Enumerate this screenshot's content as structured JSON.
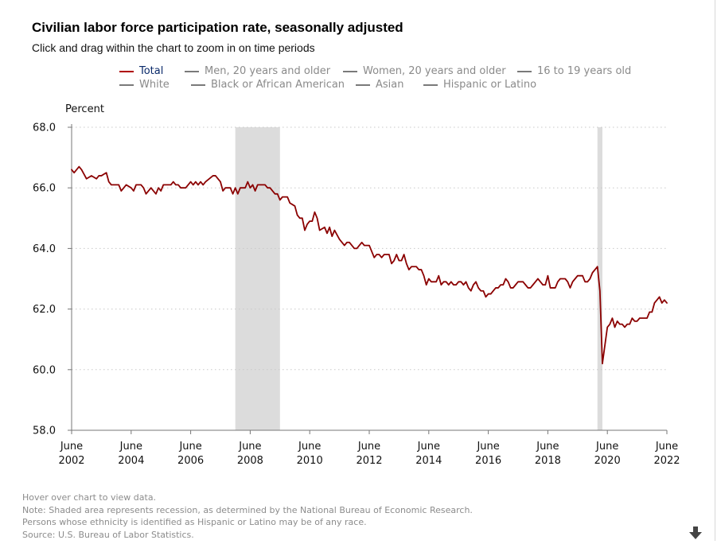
{
  "title": "Civilian labor force participation rate, seasonally adjusted",
  "subtitle": "Click and drag within the chart to zoom in on time periods",
  "legend": {
    "items": [
      {
        "label": "Total",
        "active": true
      },
      {
        "label": "Men, 20 years and older",
        "active": false
      },
      {
        "label": "Women, 20 years and older",
        "active": false
      },
      {
        "label": "16 to 19 years old",
        "active": false
      },
      {
        "label": "White",
        "active": false
      },
      {
        "label": "Black or African American",
        "active": false
      },
      {
        "label": "Asian",
        "active": false
      },
      {
        "label": "Hispanic or Latino",
        "active": false
      }
    ]
  },
  "footer": {
    "lines": [
      "Hover over chart to view data.",
      "Note: Shaded area represents recession, as determined by the National Bureau of Economic Research.",
      "Persons whose ethnicity is identified as Hispanic or Latino may be of any race.",
      "Source: U.S. Bureau of Labor Statistics."
    ]
  },
  "colors": {
    "series": "#8b0000",
    "recession": "#dcdcdc",
    "grid": "#c8c8c8",
    "axis": "#777777"
  },
  "icons": {
    "download": "down-arrow-icon"
  },
  "chart_data": {
    "type": "line",
    "ylabel": "Percent",
    "ylim": [
      58.0,
      68.0
    ],
    "yticks": [
      "58.0",
      "60.0",
      "62.0",
      "64.0",
      "66.0",
      "68.0"
    ],
    "xlim": [
      "2002-06",
      "2022-06"
    ],
    "xticks": [
      {
        "month": "June",
        "year": "2002"
      },
      {
        "month": "June",
        "year": "2004"
      },
      {
        "month": "June",
        "year": "2006"
      },
      {
        "month": "June",
        "year": "2008"
      },
      {
        "month": "June",
        "year": "2010"
      },
      {
        "month": "June",
        "year": "2012"
      },
      {
        "month": "June",
        "year": "2014"
      },
      {
        "month": "June",
        "year": "2016"
      },
      {
        "month": "June",
        "year": "2018"
      },
      {
        "month": "June",
        "year": "2020"
      },
      {
        "month": "June",
        "year": "2022"
      }
    ],
    "grid": true,
    "recessions": [
      {
        "start": "2007-12",
        "end": "2009-06"
      },
      {
        "start": "2020-02",
        "end": "2020-04"
      }
    ],
    "series": [
      {
        "name": "Total",
        "points": [
          [
            "2002-06",
            66.6
          ],
          [
            "2002-07",
            66.5
          ],
          [
            "2002-09",
            66.7
          ],
          [
            "2002-10",
            66.6
          ],
          [
            "2002-12",
            66.3
          ],
          [
            "2003-02",
            66.4
          ],
          [
            "2003-04",
            66.3
          ],
          [
            "2003-05",
            66.4
          ],
          [
            "2003-06",
            66.4
          ],
          [
            "2003-08",
            66.5
          ],
          [
            "2003-09",
            66.2
          ],
          [
            "2003-10",
            66.1
          ],
          [
            "2003-12",
            66.1
          ],
          [
            "2004-01",
            66.1
          ],
          [
            "2004-02",
            65.9
          ],
          [
            "2004-04",
            66.1
          ],
          [
            "2004-06",
            66.0
          ],
          [
            "2004-07",
            65.9
          ],
          [
            "2004-08",
            66.1
          ],
          [
            "2004-10",
            66.1
          ],
          [
            "2004-11",
            66.0
          ],
          [
            "2004-12",
            65.8
          ],
          [
            "2005-02",
            66.0
          ],
          [
            "2005-03",
            65.9
          ],
          [
            "2005-04",
            65.8
          ],
          [
            "2005-05",
            66.0
          ],
          [
            "2005-06",
            65.9
          ],
          [
            "2005-07",
            66.1
          ],
          [
            "2005-10",
            66.1
          ],
          [
            "2005-11",
            66.2
          ],
          [
            "2005-12",
            66.1
          ],
          [
            "2006-01",
            66.1
          ],
          [
            "2006-02",
            66.0
          ],
          [
            "2006-04",
            66.0
          ],
          [
            "2006-06",
            66.2
          ],
          [
            "2006-07",
            66.1
          ],
          [
            "2006-08",
            66.2
          ],
          [
            "2006-09",
            66.1
          ],
          [
            "2006-10",
            66.2
          ],
          [
            "2006-11",
            66.1
          ],
          [
            "2006-12",
            66.2
          ],
          [
            "2007-03",
            66.4
          ],
          [
            "2007-04",
            66.4
          ],
          [
            "2007-06",
            66.2
          ],
          [
            "2007-07",
            65.9
          ],
          [
            "2007-08",
            66.0
          ],
          [
            "2007-10",
            66.0
          ],
          [
            "2007-11",
            65.8
          ],
          [
            "2007-12",
            66.0
          ],
          [
            "2008-01",
            65.8
          ],
          [
            "2008-02",
            66.0
          ],
          [
            "2008-04",
            66.0
          ],
          [
            "2008-05",
            66.2
          ],
          [
            "2008-06",
            66.0
          ],
          [
            "2008-07",
            66.1
          ],
          [
            "2008-08",
            65.9
          ],
          [
            "2008-09",
            66.1
          ],
          [
            "2008-12",
            66.1
          ],
          [
            "2009-01",
            66.0
          ],
          [
            "2009-02",
            66.0
          ],
          [
            "2009-04",
            65.8
          ],
          [
            "2009-05",
            65.8
          ],
          [
            "2009-06",
            65.6
          ],
          [
            "2009-07",
            65.7
          ],
          [
            "2009-09",
            65.7
          ],
          [
            "2009-10",
            65.5
          ],
          [
            "2009-12",
            65.4
          ],
          [
            "2010-01",
            65.1
          ],
          [
            "2010-02",
            65.0
          ],
          [
            "2010-03",
            65.0
          ],
          [
            "2010-04",
            64.6
          ],
          [
            "2010-05",
            64.8
          ],
          [
            "2010-06",
            64.9
          ],
          [
            "2010-07",
            64.9
          ],
          [
            "2010-08",
            65.2
          ],
          [
            "2010-09",
            65.0
          ],
          [
            "2010-10",
            64.6
          ],
          [
            "2010-12",
            64.7
          ],
          [
            "2011-01",
            64.5
          ],
          [
            "2011-02",
            64.7
          ],
          [
            "2011-03",
            64.4
          ],
          [
            "2011-04",
            64.6
          ],
          [
            "2011-06",
            64.3
          ],
          [
            "2011-08",
            64.1
          ],
          [
            "2011-09",
            64.2
          ],
          [
            "2011-10",
            64.2
          ],
          [
            "2011-12",
            64.0
          ],
          [
            "2012-01",
            64.0
          ],
          [
            "2012-02",
            64.1
          ],
          [
            "2012-03",
            64.2
          ],
          [
            "2012-04",
            64.1
          ],
          [
            "2012-06",
            64.1
          ],
          [
            "2012-07",
            63.9
          ],
          [
            "2012-08",
            63.7
          ],
          [
            "2012-09",
            63.8
          ],
          [
            "2012-10",
            63.8
          ],
          [
            "2012-11",
            63.7
          ],
          [
            "2012-12",
            63.8
          ],
          [
            "2013-01",
            63.8
          ],
          [
            "2013-02",
            63.8
          ],
          [
            "2013-03",
            63.5
          ],
          [
            "2013-04",
            63.6
          ],
          [
            "2013-05",
            63.8
          ],
          [
            "2013-06",
            63.6
          ],
          [
            "2013-07",
            63.6
          ],
          [
            "2013-08",
            63.8
          ],
          [
            "2013-09",
            63.5
          ],
          [
            "2013-10",
            63.3
          ],
          [
            "2013-11",
            63.4
          ],
          [
            "2013-12",
            63.4
          ],
          [
            "2014-01",
            63.4
          ],
          [
            "2014-02",
            63.3
          ],
          [
            "2014-03",
            63.3
          ],
          [
            "2014-04",
            63.1
          ],
          [
            "2014-05",
            62.8
          ],
          [
            "2014-06",
            63.0
          ],
          [
            "2014-07",
            62.9
          ],
          [
            "2014-08",
            62.9
          ],
          [
            "2014-09",
            62.9
          ],
          [
            "2014-10",
            63.1
          ],
          [
            "2014-11",
            62.8
          ],
          [
            "2014-12",
            62.9
          ],
          [
            "2015-01",
            62.9
          ],
          [
            "2015-02",
            62.8
          ],
          [
            "2015-03",
            62.9
          ],
          [
            "2015-04",
            62.8
          ],
          [
            "2015-05",
            62.8
          ],
          [
            "2015-06",
            62.9
          ],
          [
            "2015-07",
            62.9
          ],
          [
            "2015-08",
            62.8
          ],
          [
            "2015-09",
            62.9
          ],
          [
            "2015-10",
            62.7
          ],
          [
            "2015-11",
            62.6
          ],
          [
            "2015-12",
            62.8
          ],
          [
            "2016-01",
            62.9
          ],
          [
            "2016-02",
            62.7
          ],
          [
            "2016-03",
            62.6
          ],
          [
            "2016-04",
            62.6
          ],
          [
            "2016-05",
            62.4
          ],
          [
            "2016-06",
            62.5
          ],
          [
            "2016-07",
            62.5
          ],
          [
            "2016-08",
            62.6
          ],
          [
            "2016-09",
            62.7
          ],
          [
            "2016-10",
            62.7
          ],
          [
            "2016-11",
            62.8
          ],
          [
            "2016-12",
            62.8
          ],
          [
            "2017-01",
            63.0
          ],
          [
            "2017-02",
            62.9
          ],
          [
            "2017-03",
            62.7
          ],
          [
            "2017-04",
            62.7
          ],
          [
            "2017-05",
            62.8
          ],
          [
            "2017-06",
            62.9
          ],
          [
            "2017-07",
            62.9
          ],
          [
            "2017-08",
            62.9
          ],
          [
            "2017-09",
            62.8
          ],
          [
            "2017-10",
            62.7
          ],
          [
            "2017-11",
            62.7
          ],
          [
            "2017-12",
            62.8
          ],
          [
            "2018-01",
            62.9
          ],
          [
            "2018-02",
            63.0
          ],
          [
            "2018-03",
            62.9
          ],
          [
            "2018-04",
            62.8
          ],
          [
            "2018-05",
            62.8
          ],
          [
            "2018-06",
            63.1
          ],
          [
            "2018-07",
            62.7
          ],
          [
            "2018-08",
            62.7
          ],
          [
            "2018-09",
            62.7
          ],
          [
            "2018-10",
            62.9
          ],
          [
            "2018-11",
            63.0
          ],
          [
            "2018-12",
            63.0
          ],
          [
            "2019-01",
            63.0
          ],
          [
            "2019-02",
            62.9
          ],
          [
            "2019-03",
            62.7
          ],
          [
            "2019-04",
            62.9
          ],
          [
            "2019-05",
            63.0
          ],
          [
            "2019-06",
            63.1
          ],
          [
            "2019-07",
            63.1
          ],
          [
            "2019-08",
            63.1
          ],
          [
            "2019-09",
            62.9
          ],
          [
            "2019-10",
            62.9
          ],
          [
            "2019-11",
            63.0
          ],
          [
            "2019-12",
            63.2
          ],
          [
            "2020-01",
            63.3
          ],
          [
            "2020-02",
            63.4
          ],
          [
            "2020-03",
            62.6
          ],
          [
            "2020-04",
            60.2
          ],
          [
            "2020-05",
            60.8
          ],
          [
            "2020-06",
            61.4
          ],
          [
            "2020-07",
            61.5
          ],
          [
            "2020-08",
            61.7
          ],
          [
            "2020-09",
            61.4
          ],
          [
            "2020-10",
            61.6
          ],
          [
            "2020-11",
            61.5
          ],
          [
            "2020-12",
            61.5
          ],
          [
            "2021-01",
            61.4
          ],
          [
            "2021-02",
            61.5
          ],
          [
            "2021-03",
            61.5
          ],
          [
            "2021-04",
            61.7
          ],
          [
            "2021-05",
            61.6
          ],
          [
            "2021-06",
            61.6
          ],
          [
            "2021-07",
            61.7
          ],
          [
            "2021-08",
            61.7
          ],
          [
            "2021-09",
            61.7
          ],
          [
            "2021-10",
            61.7
          ],
          [
            "2021-11",
            61.9
          ],
          [
            "2021-12",
            61.9
          ],
          [
            "2022-01",
            62.2
          ],
          [
            "2022-02",
            62.3
          ],
          [
            "2022-03",
            62.4
          ],
          [
            "2022-04",
            62.2
          ],
          [
            "2022-05",
            62.3
          ],
          [
            "2022-06",
            62.2
          ]
        ]
      }
    ]
  }
}
